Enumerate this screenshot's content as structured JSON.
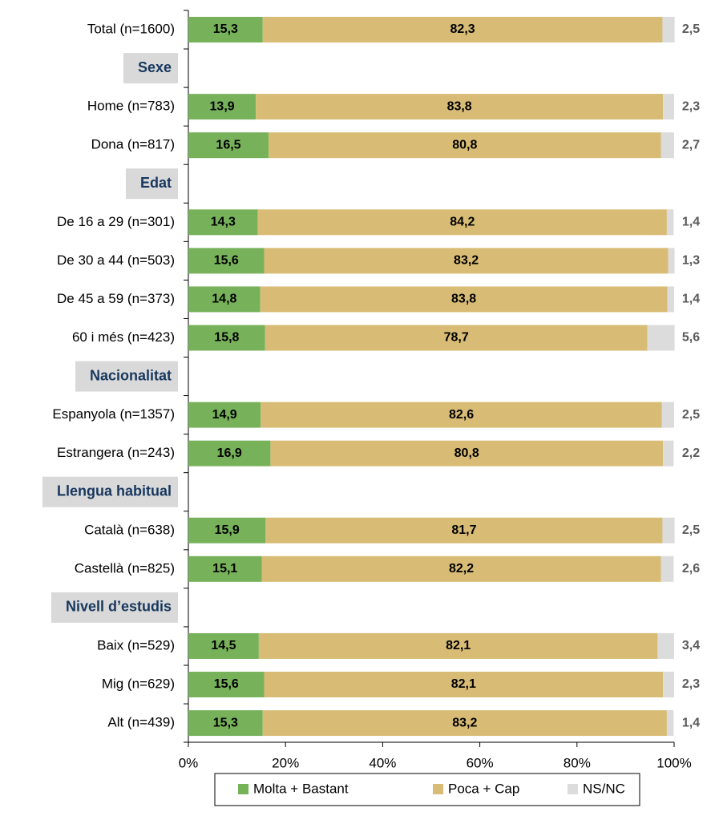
{
  "chart_data": {
    "type": "stacked-bar-horizontal",
    "categories": [
      "Total (n=1600)",
      "Sexe",
      "Home (n=783)",
      "Dona (n=817)",
      "Edat",
      "De 16 a 29 (n=301)",
      "De 30 a 44 (n=503)",
      "De 45 a 59 (n=373)",
      "60 i més (n=423)",
      "Nacionalitat",
      "Espanyola (n=1357)",
      "Estrangera (n=243)",
      "Llengua habitual",
      "Català (n=638)",
      "Castellà (n=825)",
      "Nivell d’estudis",
      "Baix (n=529)",
      "Mig (n=629)",
      "Alt (n=439)"
    ],
    "series": [
      {
        "name": "Molta + Bastant",
        "color": "#77b25b",
        "values": [
          15.3,
          null,
          13.9,
          16.5,
          null,
          14.3,
          15.6,
          14.8,
          15.8,
          null,
          14.9,
          16.9,
          null,
          15.9,
          15.1,
          null,
          14.5,
          15.6,
          15.3
        ],
        "value_labels": [
          "15,3",
          null,
          "13,9",
          "16,5",
          null,
          "14,3",
          "15,6",
          "14,8",
          "15,8",
          null,
          "14,9",
          "16,9",
          null,
          "15,9",
          "15,1",
          null,
          "14,5",
          "15,6",
          "15,3"
        ]
      },
      {
        "name": "Poca + Cap",
        "color": "#d8bc75",
        "values": [
          82.3,
          null,
          83.8,
          80.8,
          null,
          84.2,
          83.2,
          83.8,
          78.7,
          null,
          82.6,
          80.8,
          null,
          81.7,
          82.2,
          null,
          82.1,
          82.1,
          83.2
        ],
        "value_labels": [
          "82,3",
          null,
          "83,8",
          "80,8",
          null,
          "84,2",
          "83,2",
          "83,8",
          "78,7",
          null,
          "82,6",
          "80,8",
          null,
          "81,7",
          "82,2",
          null,
          "82,1",
          "82,1",
          "83,2"
        ]
      },
      {
        "name": "NS/NC",
        "color": "#dcdcdc",
        "values": [
          2.5,
          null,
          2.3,
          2.7,
          null,
          1.4,
          1.3,
          1.4,
          5.6,
          null,
          2.5,
          2.2,
          null,
          2.5,
          2.6,
          null,
          3.4,
          2.3,
          1.4
        ],
        "value_labels": [
          "2,5",
          null,
          "2,3",
          "2,7",
          null,
          "1,4",
          "1,3",
          "1,4",
          "5,6",
          null,
          "2,5",
          "2,2",
          null,
          "2,5",
          "2,6",
          null,
          "3,4",
          "2,3",
          "1,4"
        ]
      }
    ],
    "xlim": [
      0,
      100
    ],
    "xticks": [
      {
        "value": 0,
        "label": "0%"
      },
      {
        "value": 20,
        "label": "20%"
      },
      {
        "value": 40,
        "label": "40%"
      },
      {
        "value": 60,
        "label": "60%"
      },
      {
        "value": 80,
        "label": "80%"
      },
      {
        "value": 100,
        "label": "100%"
      }
    ],
    "legend": "bottom"
  }
}
